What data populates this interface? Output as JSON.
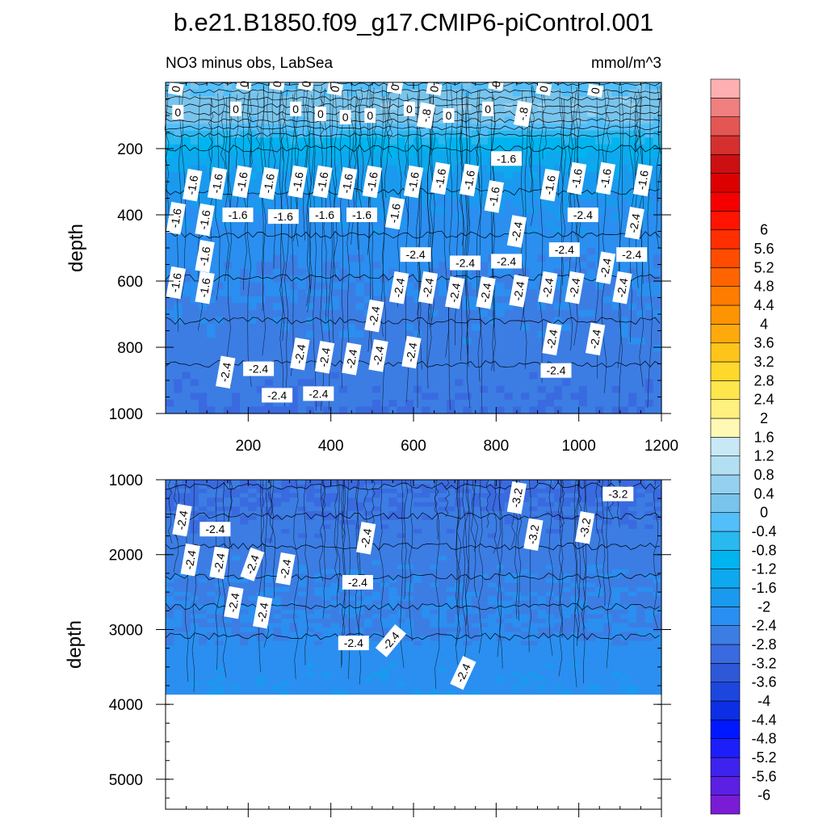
{
  "title": "b.e21.B1850.f09_g17.CMIP6-piControl.001",
  "subtitle_left": "NO3 minus obs, LabSea",
  "subtitle_right": "mmol/m^3",
  "chart_data": [
    {
      "type": "heatmap",
      "panel": "upper",
      "variable": "NO3 minus obs, LabSea",
      "units": "mmol/m^3",
      "ylabel": "depth",
      "xlabel": "",
      "xlim": [
        0,
        1200
      ],
      "ylim": [
        1000,
        0
      ],
      "xticks": [
        200,
        400,
        600,
        800,
        1000,
        1200
      ],
      "yticks": [
        200,
        400,
        600,
        800,
        1000
      ],
      "depth_profile": [
        {
          "depth": 0,
          "value": -0.2
        },
        {
          "depth": 60,
          "value": 0.3
        },
        {
          "depth": 110,
          "value": 0.2
        },
        {
          "depth": 150,
          "value": -0.4
        },
        {
          "depth": 180,
          "value": -0.9
        },
        {
          "depth": 220,
          "value": -1.3
        },
        {
          "depth": 280,
          "value": -1.7
        },
        {
          "depth": 400,
          "value": -2.1
        },
        {
          "depth": 550,
          "value": -2.3
        },
        {
          "depth": 700,
          "value": -2.5
        },
        {
          "depth": 850,
          "value": -2.6
        },
        {
          "depth": 1000,
          "value": -2.8
        }
      ],
      "contour_labels": [
        {
          "x": 25,
          "depth": 20,
          "text": "0",
          "rot": -80
        },
        {
          "x": 190,
          "depth": 5,
          "text": "0",
          "rot": -80
        },
        {
          "x": 270,
          "depth": 5,
          "text": "0",
          "rot": -80
        },
        {
          "x": 340,
          "depth": 5,
          "text": "0",
          "rot": -80
        },
        {
          "x": 410,
          "depth": 20,
          "text": "0",
          "rot": -80
        },
        {
          "x": 555,
          "depth": 15,
          "text": "0",
          "rot": -80
        },
        {
          "x": 650,
          "depth": 20,
          "text": "0",
          "rot": -80
        },
        {
          "x": 800,
          "depth": 5,
          "text": "0",
          "rot": -80
        },
        {
          "x": 915,
          "depth": 20,
          "text": "0",
          "rot": -80
        },
        {
          "x": 1040,
          "depth": 25,
          "text": "0",
          "rot": -80
        },
        {
          "x": 30,
          "depth": 90,
          "text": "0",
          "rot": 0
        },
        {
          "x": 170,
          "depth": 80,
          "text": "0",
          "rot": 0
        },
        {
          "x": 315,
          "depth": 80,
          "text": "0",
          "rot": 0
        },
        {
          "x": 375,
          "depth": 95,
          "text": "0",
          "rot": 0
        },
        {
          "x": 435,
          "depth": 105,
          "text": "0",
          "rot": 0
        },
        {
          "x": 495,
          "depth": 100,
          "text": "0",
          "rot": 0
        },
        {
          "x": 590,
          "depth": 80,
          "text": "0",
          "rot": 0
        },
        {
          "x": 630,
          "depth": 100,
          "text": "-.8",
          "rot": -80
        },
        {
          "x": 685,
          "depth": 100,
          "text": "0",
          "rot": 0
        },
        {
          "x": 780,
          "depth": 80,
          "text": "0",
          "rot": 0
        },
        {
          "x": 865,
          "depth": 95,
          "text": "-.8",
          "rot": -80
        },
        {
          "x": 65,
          "depth": 310,
          "text": "-1.6",
          "rot": -80
        },
        {
          "x": 125,
          "depth": 305,
          "text": "-1.6",
          "rot": -80
        },
        {
          "x": 185,
          "depth": 300,
          "text": "-1.6",
          "rot": -80
        },
        {
          "x": 250,
          "depth": 305,
          "text": "-1.6",
          "rot": -80
        },
        {
          "x": 320,
          "depth": 300,
          "text": "-1.6",
          "rot": -80
        },
        {
          "x": 380,
          "depth": 300,
          "text": "-1.6",
          "rot": -80
        },
        {
          "x": 440,
          "depth": 305,
          "text": "-1.6",
          "rot": -80
        },
        {
          "x": 500,
          "depth": 300,
          "text": "-1.6",
          "rot": -80
        },
        {
          "x": 600,
          "depth": 300,
          "text": "-1.6",
          "rot": -80
        },
        {
          "x": 665,
          "depth": 290,
          "text": "-1.6",
          "rot": -80
        },
        {
          "x": 735,
          "depth": 295,
          "text": "-1.6",
          "rot": -80
        },
        {
          "x": 795,
          "depth": 345,
          "text": "-1.6",
          "rot": -80
        },
        {
          "x": 825,
          "depth": 230,
          "text": "-1.6",
          "rot": 0
        },
        {
          "x": 930,
          "depth": 310,
          "text": "-1.6",
          "rot": -80
        },
        {
          "x": 995,
          "depth": 290,
          "text": "-1.6",
          "rot": -80
        },
        {
          "x": 1065,
          "depth": 290,
          "text": "-1.6",
          "rot": -80
        },
        {
          "x": 1155,
          "depth": 295,
          "text": "-1.6",
          "rot": -80
        },
        {
          "x": 25,
          "depth": 410,
          "text": "-1.6",
          "rot": -80
        },
        {
          "x": 95,
          "depth": 415,
          "text": "-1.6",
          "rot": -80
        },
        {
          "x": 175,
          "depth": 400,
          "text": "-1.6",
          "rot": 0
        },
        {
          "x": 285,
          "depth": 405,
          "text": "-1.6",
          "rot": 0
        },
        {
          "x": 385,
          "depth": 400,
          "text": "-1.6",
          "rot": 0
        },
        {
          "x": 475,
          "depth": 400,
          "text": "-1.6",
          "rot": 0
        },
        {
          "x": 555,
          "depth": 395,
          "text": "-1.6",
          "rot": -80
        },
        {
          "x": 850,
          "depth": 450,
          "text": "-2.4",
          "rot": -80
        },
        {
          "x": 1010,
          "depth": 400,
          "text": "-2.4",
          "rot": 0
        },
        {
          "x": 1135,
          "depth": 425,
          "text": "-2.4",
          "rot": -80
        },
        {
          "x": 95,
          "depth": 525,
          "text": "-1.6",
          "rot": -80
        },
        {
          "x": 605,
          "depth": 520,
          "text": "-2.4",
          "rot": 0
        },
        {
          "x": 965,
          "depth": 505,
          "text": "-2.4",
          "rot": 0
        },
        {
          "x": 725,
          "depth": 545,
          "text": "-2.4",
          "rot": 0
        },
        {
          "x": 825,
          "depth": 540,
          "text": "-2.4",
          "rot": 0
        },
        {
          "x": 1065,
          "depth": 560,
          "text": "-2.4",
          "rot": -80
        },
        {
          "x": 1128,
          "depth": 520,
          "text": "-2.4",
          "rot": 0
        },
        {
          "x": 25,
          "depth": 605,
          "text": "-1.6",
          "rot": -80
        },
        {
          "x": 95,
          "depth": 620,
          "text": "-1.6",
          "rot": -80
        },
        {
          "x": 565,
          "depth": 620,
          "text": "-2.4",
          "rot": -80
        },
        {
          "x": 635,
          "depth": 620,
          "text": "-2.4",
          "rot": -80
        },
        {
          "x": 700,
          "depth": 635,
          "text": "-2.4",
          "rot": -80
        },
        {
          "x": 775,
          "depth": 635,
          "text": "-2.4",
          "rot": -80
        },
        {
          "x": 855,
          "depth": 630,
          "text": "-2.4",
          "rot": -80
        },
        {
          "x": 925,
          "depth": 620,
          "text": "-2.4",
          "rot": -80
        },
        {
          "x": 990,
          "depth": 620,
          "text": "-2.4",
          "rot": -80
        },
        {
          "x": 1105,
          "depth": 620,
          "text": "-2.4",
          "rot": -80
        },
        {
          "x": 505,
          "depth": 705,
          "text": "-2.4",
          "rot": -80
        },
        {
          "x": 935,
          "depth": 775,
          "text": "-2.4",
          "rot": -80
        },
        {
          "x": 1040,
          "depth": 775,
          "text": "-2.4",
          "rot": -80
        },
        {
          "x": 325,
          "depth": 820,
          "text": "-2.4",
          "rot": -80
        },
        {
          "x": 385,
          "depth": 830,
          "text": "-2.4",
          "rot": -80
        },
        {
          "x": 450,
          "depth": 835,
          "text": "-2.4",
          "rot": -80
        },
        {
          "x": 515,
          "depth": 825,
          "text": "-2.4",
          "rot": -80
        },
        {
          "x": 595,
          "depth": 815,
          "text": "-2.4",
          "rot": -80
        },
        {
          "x": 145,
          "depth": 875,
          "text": "-2.4",
          "rot": -80
        },
        {
          "x": 225,
          "depth": 865,
          "text": "-2.4",
          "rot": 0
        },
        {
          "x": 945,
          "depth": 870,
          "text": "-2.4",
          "rot": 0
        },
        {
          "x": 270,
          "depth": 945,
          "text": "-2.4",
          "rot": 0
        },
        {
          "x": 370,
          "depth": 940,
          "text": "-2.4",
          "rot": 0
        }
      ]
    },
    {
      "type": "heatmap",
      "panel": "lower",
      "variable": "NO3 minus obs, LabSea",
      "units": "mmol/m^3",
      "ylabel": "depth",
      "xlabel": "",
      "xlim": [
        0,
        1200
      ],
      "ylim": [
        5400,
        1000
      ],
      "xticks": [
        200,
        400,
        600,
        800,
        1000,
        1200
      ],
      "yticks": [
        1000,
        2000,
        3000,
        4000,
        5000
      ],
      "data_bottom_depth": 3870,
      "depth_profile": [
        {
          "depth": 1000,
          "value": -2.9
        },
        {
          "depth": 1600,
          "value": -2.7
        },
        {
          "depth": 2200,
          "value": -2.5
        },
        {
          "depth": 3000,
          "value": -2.4
        },
        {
          "depth": 3300,
          "value": -2.2
        },
        {
          "depth": 3870,
          "value": -2.1
        }
      ],
      "contour_labels": [
        {
          "x": 1095,
          "depth": 1190,
          "text": "-3.2",
          "rot": 0
        },
        {
          "x": 850,
          "depth": 1240,
          "text": "-3.2",
          "rot": -80
        },
        {
          "x": 40,
          "depth": 1540,
          "text": "-2.4",
          "rot": -80
        },
        {
          "x": 120,
          "depth": 1660,
          "text": "-2.4",
          "rot": 0
        },
        {
          "x": 485,
          "depth": 1780,
          "text": "-2.4",
          "rot": -80
        },
        {
          "x": 890,
          "depth": 1730,
          "text": "-3.2",
          "rot": -80
        },
        {
          "x": 1015,
          "depth": 1640,
          "text": "-3.2",
          "rot": -80
        },
        {
          "x": 60,
          "depth": 2070,
          "text": "-2.4",
          "rot": -80
        },
        {
          "x": 130,
          "depth": 2110,
          "text": "-2.4",
          "rot": -80
        },
        {
          "x": 210,
          "depth": 2130,
          "text": "-2.4",
          "rot": -70
        },
        {
          "x": 290,
          "depth": 2190,
          "text": "-2.4",
          "rot": -80
        },
        {
          "x": 465,
          "depth": 2370,
          "text": "-2.4",
          "rot": 0
        },
        {
          "x": 165,
          "depth": 2640,
          "text": "-2.4",
          "rot": -80
        },
        {
          "x": 235,
          "depth": 2770,
          "text": "-2.4",
          "rot": -80
        },
        {
          "x": 455,
          "depth": 3180,
          "text": "-2.4",
          "rot": 0
        },
        {
          "x": 545,
          "depth": 3150,
          "text": "-2.4",
          "rot": -50
        },
        {
          "x": 720,
          "depth": 3580,
          "text": "-2.4",
          "rot": -65
        }
      ]
    }
  ],
  "colorbar": {
    "colors": [
      "#7a1cd6",
      "#5c1fe4",
      "#3e23ee",
      "#1c1ffa",
      "#0018ff",
      "#0c2fe6",
      "#1d46df",
      "#2e58d8",
      "#3a6ae0",
      "#3c7de4",
      "#2a8ff0",
      "#1a9aee",
      "#0ea8ee",
      "#00b4f0",
      "#28b9ef",
      "#52befa",
      "#78c4ec",
      "#95d0f0",
      "#b3dff3",
      "#c9e8f6",
      "#fff9b5",
      "#fff080",
      "#ffe64c",
      "#ffd82c",
      "#ffc41a",
      "#ffaa0c",
      "#ff9402",
      "#ff7c00",
      "#ff6400",
      "#ff4c00",
      "#ff2f00",
      "#ff1400",
      "#f50000",
      "#dd0000",
      "#cc0f12",
      "#d6302e",
      "#e45654",
      "#f07f80",
      "#fcb0b1"
    ],
    "labels": [
      "-6",
      "-5.6",
      "-5.2",
      "-4.8",
      "-4.4",
      "-4",
      "-3.6",
      "-3.2",
      "-2.8",
      "-2.4",
      "-2",
      "-1.6",
      "-1.2",
      "-0.8",
      "-0.4",
      "0",
      "0.4",
      "0.8",
      "1.2",
      "1.6",
      "2",
      "2.4",
      "2.8",
      "3.2",
      "3.6",
      "4",
      "4.4",
      "4.8",
      "5.2",
      "5.6",
      "6"
    ]
  },
  "icons": {},
  "colors": {
    "missing": "#ffffff",
    "axis": "#000000",
    "contour": "#000000"
  }
}
